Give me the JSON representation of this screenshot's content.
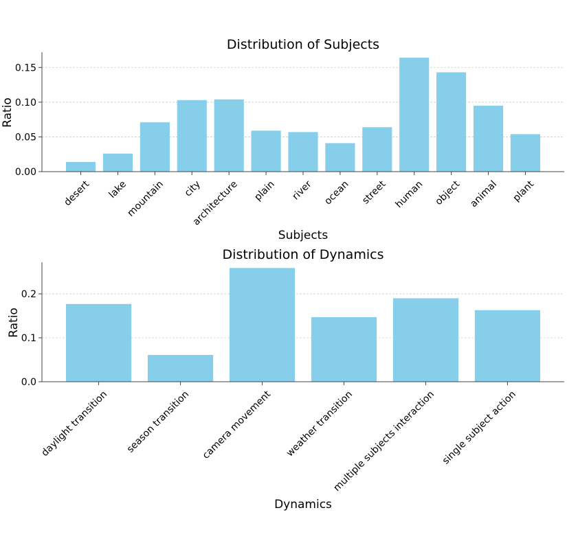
{
  "chart_data": [
    {
      "type": "bar",
      "title": "Distribution of Subjects",
      "xlabel": "Subjects",
      "ylabel": "Ratio",
      "categories": [
        "desert",
        "lake",
        "mountain",
        "city",
        "architecture",
        "plain",
        "river",
        "ocean",
        "street",
        "human",
        "object",
        "animal",
        "plant"
      ],
      "values": [
        0.014,
        0.026,
        0.071,
        0.103,
        0.104,
        0.059,
        0.057,
        0.041,
        0.064,
        0.164,
        0.143,
        0.095,
        0.054
      ],
      "ylim": [
        0,
        0.172
      ],
      "yticks": [
        0.0,
        0.05,
        0.1,
        0.15
      ],
      "ytick_labels": [
        "0.00",
        "0.05",
        "0.10",
        "0.15"
      ],
      "grid": true,
      "color": "#87ceeb"
    },
    {
      "type": "bar",
      "title": "Distribution of Dynamics",
      "xlabel": "Dynamics",
      "ylabel": "Ratio",
      "categories": [
        "daylight transition",
        "season transition",
        "camera movement",
        "weather transition",
        "multiple subjects interaction",
        "single subject action"
      ],
      "values": [
        0.177,
        0.061,
        0.259,
        0.147,
        0.19,
        0.163
      ],
      "ylim": [
        0,
        0.272
      ],
      "yticks": [
        0.0,
        0.1,
        0.2
      ],
      "ytick_labels": [
        "0.0",
        "0.1",
        "0.2"
      ],
      "grid": true,
      "color": "#87ceeb"
    }
  ]
}
